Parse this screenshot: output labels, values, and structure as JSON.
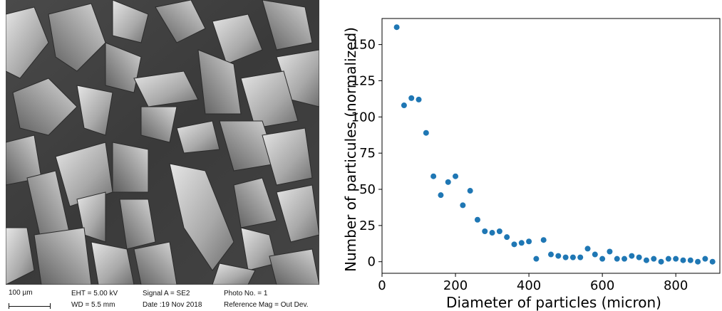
{
  "sem_info": {
    "scale_bar_label": "100 µm",
    "eht": "EHT =  5.00 kV",
    "wd": "WD =  5.5 mm",
    "signal": "Signal A = SE2",
    "date": "Date :19 Nov 2018",
    "photo": "Photo No. = 1",
    "reference_mag": "Reference Mag = Out Dev."
  },
  "chart_data": {
    "type": "scatter",
    "xlabel": "Diameter of particles (micron)",
    "ylabel": "Number of particules (normalized)",
    "xlim": [
      0,
      920
    ],
    "ylim": [
      -8,
      168
    ],
    "xticks": [
      0,
      200,
      400,
      600,
      800
    ],
    "yticks": [
      0,
      25,
      50,
      75,
      100,
      125,
      150
    ],
    "marker_color": "#1f77b4",
    "x": [
      40,
      60,
      80,
      100,
      120,
      140,
      160,
      180,
      200,
      220,
      240,
      260,
      280,
      300,
      320,
      340,
      360,
      380,
      400,
      420,
      440,
      460,
      480,
      500,
      520,
      540,
      560,
      580,
      600,
      620,
      640,
      660,
      680,
      700,
      720,
      740,
      760,
      780,
      800,
      820,
      840,
      860,
      880,
      900
    ],
    "y": [
      162,
      108,
      113,
      112,
      89,
      59,
      46,
      55,
      59,
      39,
      49,
      29,
      21,
      20,
      21,
      17,
      12,
      13,
      14,
      2,
      15,
      5,
      4,
      3,
      3,
      3,
      9,
      5,
      2,
      7,
      2,
      2,
      4,
      3,
      1,
      2,
      0,
      2,
      2,
      1,
      1,
      0,
      2,
      0
    ]
  }
}
